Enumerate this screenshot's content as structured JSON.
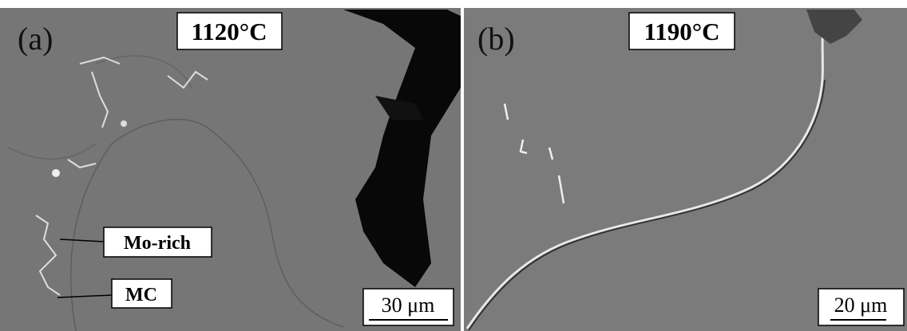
{
  "panels": [
    {
      "label": "(a)",
      "temperature": "1120°C",
      "annotations": [
        "Mo-rich",
        "MC"
      ],
      "scale_bar": "30 μm"
    },
    {
      "label": "(b)",
      "temperature": "1190°C",
      "scale_bar": "20 μm"
    }
  ]
}
